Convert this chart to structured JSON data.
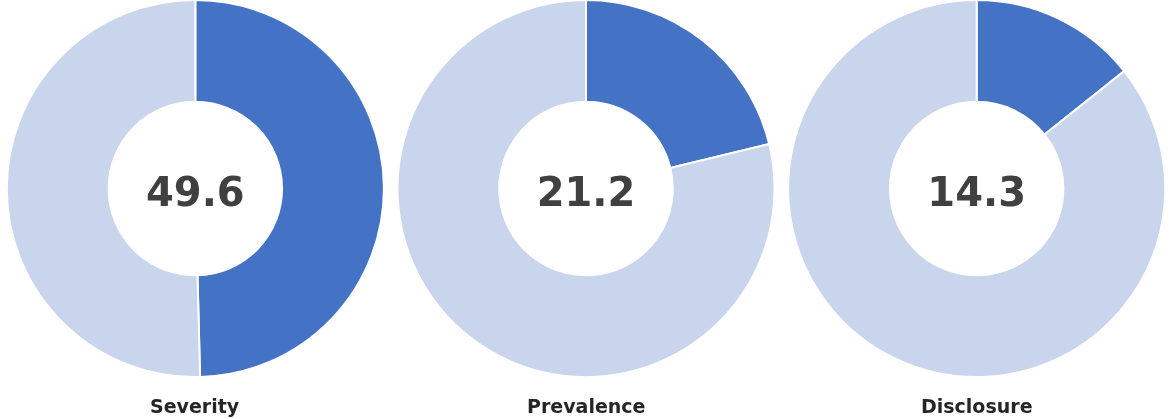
{
  "chart_data": [
    {
      "type": "donut",
      "title": "49.6",
      "xlabel": "Severity",
      "categories": [
        null,
        null
      ],
      "values": [
        49.6,
        50.4
      ],
      "colors": [
        "#4472c4",
        "#c9d5ec"
      ],
      "legend": false
    },
    {
      "type": "donut",
      "title": "21.2",
      "xlabel": "Prevalence",
      "categories": [
        null,
        null
      ],
      "values": [
        21.2,
        78.8
      ],
      "colors": [
        "#4472c4",
        "#c9d5ec"
      ],
      "legend": false
    },
    {
      "type": "donut",
      "title": "14.3",
      "xlabel": "Disclosure",
      "categories": [
        null,
        null
      ],
      "values": [
        14.3,
        85.7
      ],
      "colors": [
        "#4472c4",
        "#c9d5ec"
      ],
      "legend": false
    }
  ]
}
